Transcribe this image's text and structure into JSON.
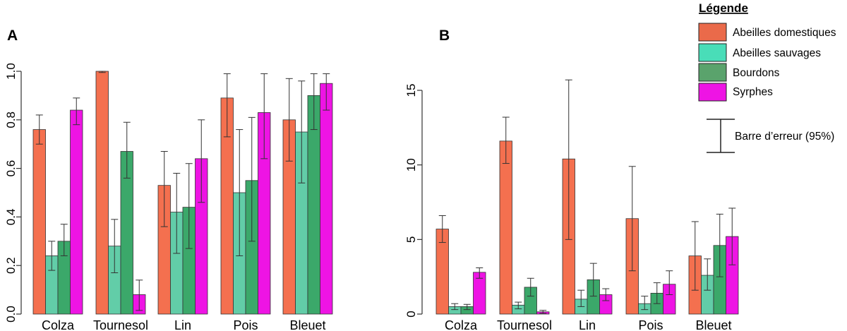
{
  "colors": {
    "series": [
      "#F4704F",
      "#62CDA8",
      "#3BA86A",
      "#EE14E4"
    ],
    "legend": [
      "#EA6A4A",
      "#49DDB8",
      "#5AA36C",
      "#EE14E4"
    ]
  },
  "legend": {
    "title": "Légende",
    "items": [
      "Abeilles domestiques",
      "Abeilles sauvages",
      "Bourdons",
      "Syrphes"
    ],
    "error_bar_label": "Barre d’erreur (95%)"
  },
  "chart_data": [
    {
      "type": "bar",
      "panel": "A",
      "title": "",
      "xlabel": "",
      "ylabel": "",
      "categories": [
        "Colza",
        "Tournesol",
        "Lin",
        "Pois",
        "Bleuet"
      ],
      "ylim": [
        0,
        1.0
      ],
      "yticks": [
        0.0,
        0.2,
        0.4,
        0.6,
        0.8,
        1.0
      ],
      "ytick_labels": [
        "0.0",
        "0.2",
        "0.4",
        "0.6",
        "0.8",
        "1.0"
      ],
      "series": [
        {
          "name": "Abeilles domestiques",
          "values": [
            0.76,
            1.0,
            0.53,
            0.89,
            0.8
          ],
          "err_low": [
            0.7,
            0.995,
            0.36,
            0.73,
            0.63
          ],
          "err_high": [
            0.82,
            1.0,
            0.67,
            0.99,
            0.97
          ]
        },
        {
          "name": "Abeilles sauvages",
          "values": [
            0.24,
            0.28,
            0.42,
            0.5,
            0.75
          ],
          "err_low": [
            0.18,
            0.17,
            0.25,
            0.24,
            0.54
          ],
          "err_high": [
            0.3,
            0.39,
            0.58,
            0.76,
            0.96
          ]
        },
        {
          "name": "Bourdons",
          "values": [
            0.3,
            0.67,
            0.44,
            0.55,
            0.9
          ],
          "err_low": [
            0.24,
            0.56,
            0.27,
            0.3,
            0.76
          ],
          "err_high": [
            0.37,
            0.79,
            0.62,
            0.81,
            0.99
          ]
        },
        {
          "name": "Syrphes",
          "values": [
            0.84,
            0.08,
            0.64,
            0.83,
            0.95
          ],
          "err_low": [
            0.78,
            0.015,
            0.46,
            0.64,
            0.84
          ],
          "err_high": [
            0.89,
            0.14,
            0.8,
            0.99,
            0.99
          ]
        }
      ]
    },
    {
      "type": "bar",
      "panel": "B",
      "title": "",
      "xlabel": "",
      "ylabel": "",
      "categories": [
        "Colza",
        "Tournesol",
        "Lin",
        "Pois",
        "Bleuet"
      ],
      "ylim": [
        0,
        15
      ],
      "yticks": [
        0,
        5,
        10,
        15
      ],
      "ytick_labels": [
        "0",
        "5",
        "10",
        "15"
      ],
      "series": [
        {
          "name": "Abeilles domestiques",
          "values": [
            5.7,
            11.6,
            10.4,
            6.4,
            3.9
          ],
          "err_low": [
            4.8,
            10.1,
            5.0,
            2.9,
            1.6
          ],
          "err_high": [
            6.6,
            13.2,
            15.7,
            9.9,
            6.2
          ]
        },
        {
          "name": "Abeilles sauvages",
          "values": [
            0.5,
            0.6,
            1.0,
            0.7,
            2.6
          ],
          "err_low": [
            0.3,
            0.35,
            0.5,
            0.3,
            1.6
          ],
          "err_high": [
            0.7,
            0.8,
            1.6,
            1.2,
            3.7
          ]
        },
        {
          "name": "Bourdons",
          "values": [
            0.5,
            1.8,
            2.3,
            1.4,
            4.6
          ],
          "err_low": [
            0.3,
            1.2,
            1.2,
            0.7,
            2.5
          ],
          "err_high": [
            0.65,
            2.4,
            3.4,
            2.1,
            6.7
          ]
        },
        {
          "name": "Syrphes",
          "values": [
            2.8,
            0.15,
            1.3,
            2.0,
            5.2
          ],
          "err_low": [
            2.4,
            0.05,
            0.9,
            1.3,
            3.3
          ],
          "err_high": [
            3.1,
            0.25,
            1.7,
            2.9,
            7.1
          ]
        }
      ]
    }
  ]
}
